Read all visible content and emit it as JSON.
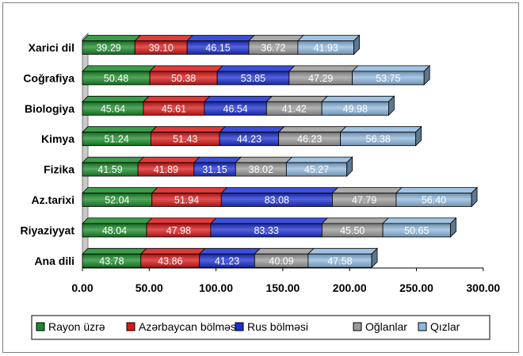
{
  "chart_data": {
    "type": "bar",
    "orientation": "horizontal",
    "stacked": true,
    "categories": [
      "Xarici dil",
      "Coğrafiya",
      "Biologiya",
      "Kimya",
      "Fizika",
      "Az.tarixi",
      "Riyaziyyat",
      "Ana dili"
    ],
    "series": [
      {
        "name": "Rayon üzrə",
        "color": "#1a8a2a",
        "values": [
          39.29,
          50.48,
          45.64,
          51.24,
          41.59,
          52.04,
          48.04,
          43.78
        ],
        "labels": [
          "39.29",
          "50.48",
          "45.64",
          "51.24",
          "41.59",
          "52.04",
          "48.04",
          "43.78"
        ]
      },
      {
        "name": "Azərbaycan bölməsi",
        "color": "#d81818",
        "values": [
          39.1,
          50.38,
          45.61,
          51.43,
          41.89,
          51.94,
          47.98,
          43.86
        ],
        "labels": [
          "39.10",
          "50.38",
          "45.61",
          "51.43",
          "41.89",
          "51.94",
          "47.98",
          "43.86"
        ]
      },
      {
        "name": "Rus bölməsi",
        "color": "#1b2fd0",
        "values": [
          46.15,
          53.85,
          46.54,
          44.23,
          31.15,
          83.08,
          83.33,
          41.23
        ],
        "labels": [
          "46.15",
          "53.85",
          "46.54",
          "44.23",
          "31.15",
          "83.08",
          "83.33",
          "41.23"
        ]
      },
      {
        "name": "Oğlanlar",
        "color": "#9a9a9a",
        "values": [
          36.72,
          47.29,
          41.42,
          46.23,
          38.02,
          47.79,
          45.5,
          40.09
        ],
        "labels": [
          "36.72",
          "47.29",
          "41.42",
          "46.23",
          "38.02",
          "47.79",
          "45.50",
          "40.09"
        ]
      },
      {
        "name": "Qızlar",
        "color": "#8fb8de",
        "values": [
          41.93,
          53.75,
          49.98,
          56.38,
          45.27,
          56.4,
          50.65,
          47.58
        ],
        "labels": [
          "41.93",
          "53.75",
          "49.98",
          "56.38",
          "45.27",
          "56.40",
          "50.65",
          "47.58"
        ]
      }
    ],
    "xlim": [
      0,
      300
    ],
    "xticks": [
      0,
      50,
      100,
      150,
      200,
      250,
      300
    ],
    "xtick_labels": [
      "0.00",
      "50.00",
      "100.00",
      "150.00",
      "200.00",
      "250.00",
      "300.00"
    ],
    "grid": false,
    "legend_position": "bottom"
  }
}
